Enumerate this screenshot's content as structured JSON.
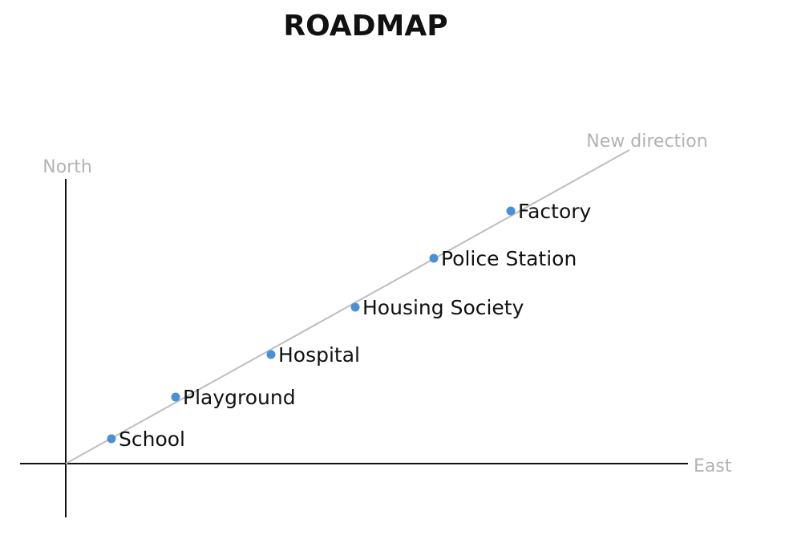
{
  "title": "ROADMAP",
  "axes": {
    "north_label": "North",
    "east_label": "East",
    "direction_label": "New direction"
  },
  "colors": {
    "axis": "#111111",
    "direction_line": "#bdbdbd",
    "axis_label": "#b3b3b3",
    "point": "#4a90d9",
    "text": "#111111"
  },
  "points": [
    {
      "label": "School"
    },
    {
      "label": "Playground"
    },
    {
      "label": "Hospital"
    },
    {
      "label": "Housing Society"
    },
    {
      "label": "Police Station"
    },
    {
      "label": "Factory"
    }
  ]
}
